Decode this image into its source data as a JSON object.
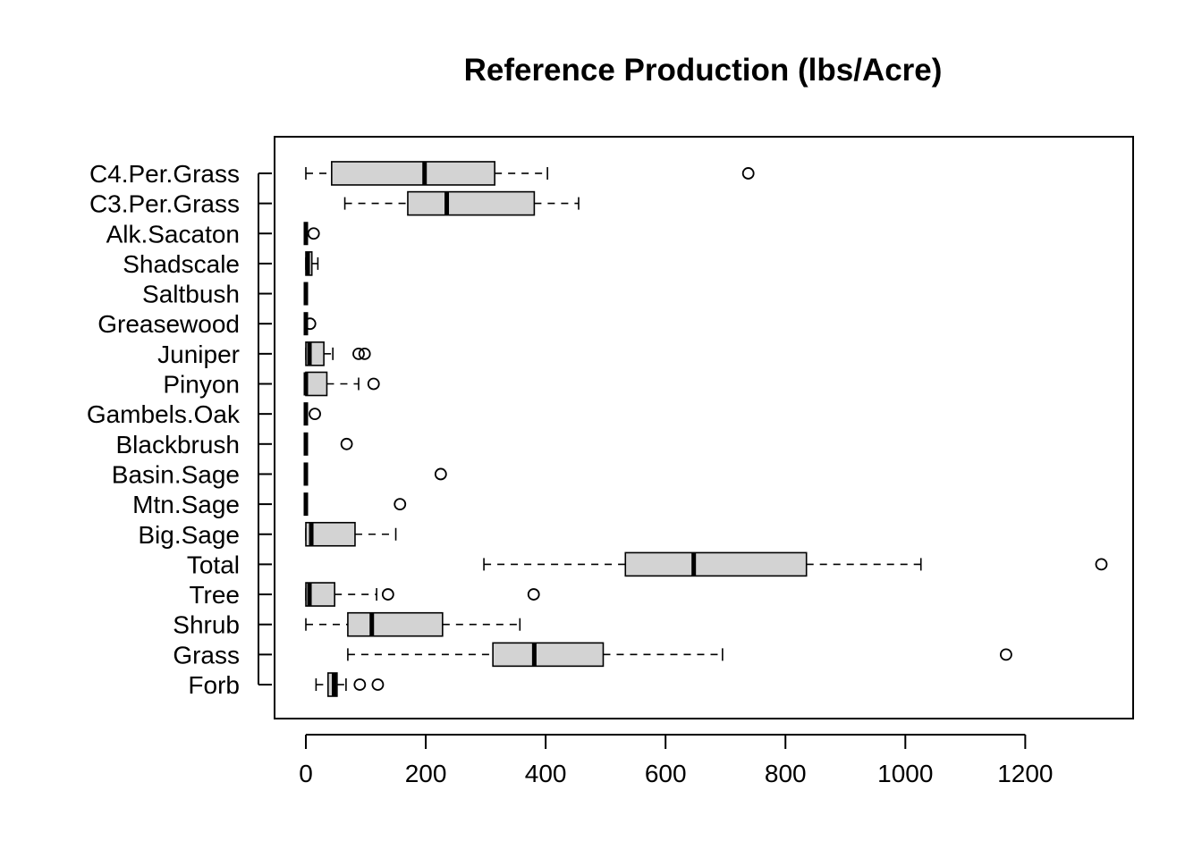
{
  "chart_data": {
    "type": "boxplot",
    "orientation": "horizontal",
    "title": "Reference Production (lbs/Acre)",
    "xlabel": "",
    "ylabel": "",
    "xlim": [
      -55,
      1380
    ],
    "x_ticks": [
      0,
      200,
      400,
      600,
      800,
      1000,
      1200
    ],
    "x_tick_labels": [
      "0",
      "200",
      "400",
      "600",
      "800",
      "1000",
      "1200"
    ],
    "grid": false,
    "box_fill": "#d3d3d3",
    "categories": [
      "Forb",
      "Grass",
      "Shrub",
      "Tree",
      "Total",
      "Big.Sage",
      "Mtn.Sage",
      "Basin.Sage",
      "Blackbrush",
      "Gambels.Oak",
      "Pinyon",
      "Juniper",
      "Greasewood",
      "Saltbush",
      "Shadscale",
      "Alk.Sacaton",
      "C3.Per.Grass",
      "C4.Per.Grass"
    ],
    "boxes": [
      {
        "name": "Forb",
        "whisker_low": 17,
        "q1": 37,
        "median": 47,
        "q3": 52,
        "whisker_high": 67,
        "outliers": [
          90,
          120
        ]
      },
      {
        "name": "Grass",
        "whisker_low": 70,
        "q1": 312,
        "median": 381,
        "q3": 496,
        "whisker_high": 695,
        "outliers": [
          1168
        ]
      },
      {
        "name": "Shrub",
        "whisker_low": 0,
        "q1": 70,
        "median": 110,
        "q3": 228,
        "whisker_high": 357,
        "outliers": []
      },
      {
        "name": "Tree",
        "whisker_low": 0,
        "q1": 0,
        "median": 6,
        "q3": 48,
        "whisker_high": 118,
        "outliers": [
          137,
          380
        ]
      },
      {
        "name": "Total",
        "whisker_low": 297,
        "q1": 533,
        "median": 647,
        "q3": 835,
        "whisker_high": 1026,
        "outliers": [
          1327
        ]
      },
      {
        "name": "Big.Sage",
        "whisker_low": 0,
        "q1": 0,
        "median": 9,
        "q3": 82,
        "whisker_high": 150,
        "outliers": []
      },
      {
        "name": "Mtn.Sage",
        "whisker_low": 0,
        "q1": 0,
        "median": 0,
        "q3": 0,
        "whisker_high": 0,
        "outliers": [
          157
        ]
      },
      {
        "name": "Basin.Sage",
        "whisker_low": 0,
        "q1": 0,
        "median": 0,
        "q3": 0,
        "whisker_high": 0,
        "outliers": [
          225
        ]
      },
      {
        "name": "Blackbrush",
        "whisker_low": 0,
        "q1": 0,
        "median": 0,
        "q3": 0,
        "whisker_high": 0,
        "outliers": [
          68
        ]
      },
      {
        "name": "Gambels.Oak",
        "whisker_low": 0,
        "q1": 0,
        "median": 0,
        "q3": 0,
        "whisker_high": 0,
        "outliers": [
          15
        ]
      },
      {
        "name": "Pinyon",
        "whisker_low": 0,
        "q1": 0,
        "median": 0,
        "q3": 35,
        "whisker_high": 88,
        "outliers": [
          113
        ]
      },
      {
        "name": "Juniper",
        "whisker_low": 0,
        "q1": 0,
        "median": 6,
        "q3": 30,
        "whisker_high": 45,
        "outliers": [
          88,
          98
        ]
      },
      {
        "name": "Greasewood",
        "whisker_low": 0,
        "q1": 0,
        "median": 0,
        "q3": 0,
        "whisker_high": 0,
        "outliers": [
          7
        ]
      },
      {
        "name": "Saltbush",
        "whisker_low": 0,
        "q1": 0,
        "median": 0,
        "q3": 0,
        "whisker_high": 0,
        "outliers": []
      },
      {
        "name": "Shadscale",
        "whisker_low": 0,
        "q1": 0,
        "median": 3,
        "q3": 10,
        "whisker_high": 20,
        "outliers": []
      },
      {
        "name": "Alk.Sacaton",
        "whisker_low": 0,
        "q1": 0,
        "median": 0,
        "q3": 0,
        "whisker_high": 0,
        "outliers": [
          13
        ]
      },
      {
        "name": "C3.Per.Grass",
        "whisker_low": 65,
        "q1": 170,
        "median": 235,
        "q3": 381,
        "whisker_high": 455,
        "outliers": []
      },
      {
        "name": "C4.Per.Grass",
        "whisker_low": 0,
        "q1": 43,
        "median": 198,
        "q3": 315,
        "whisker_high": 403,
        "outliers": [
          738
        ]
      }
    ]
  }
}
